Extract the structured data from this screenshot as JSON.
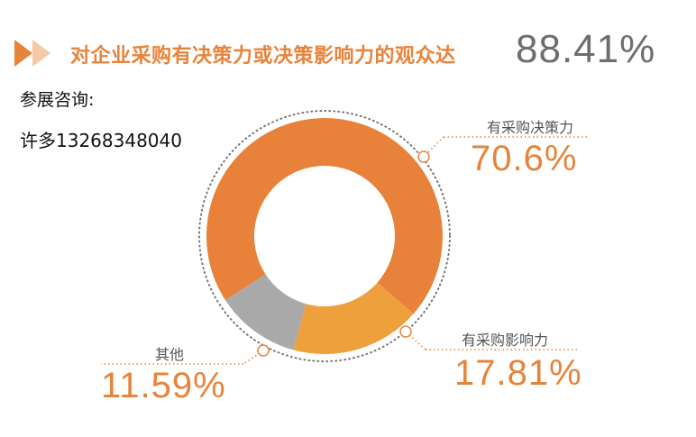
{
  "header": {
    "title": "对企业采购有决策力或决策影响力的观众达",
    "value": "88.41%"
  },
  "contact": {
    "label": "参展咨询:",
    "value": "许多13268348040"
  },
  "colors": {
    "accent": "#e8833a",
    "accent_light": "#f5c9a4",
    "slice_decision": "#e8823a",
    "slice_influence": "#eda03c",
    "slice_other": "#a9a9a9",
    "text_gray": "#6e6e6e"
  },
  "chart_data": {
    "type": "pie",
    "title": "对企业采购有决策力或决策影响力的观众达",
    "slices": [
      {
        "name": "有采购决策力",
        "value": 70.6,
        "label": "70.6%",
        "color": "#e8823a"
      },
      {
        "name": "有采购影响力",
        "value": 17.81,
        "label": "17.81%",
        "color": "#eda03c"
      },
      {
        "name": "其他",
        "value": 11.59,
        "label": "11.59%",
        "color": "#a9a9a9"
      }
    ]
  }
}
